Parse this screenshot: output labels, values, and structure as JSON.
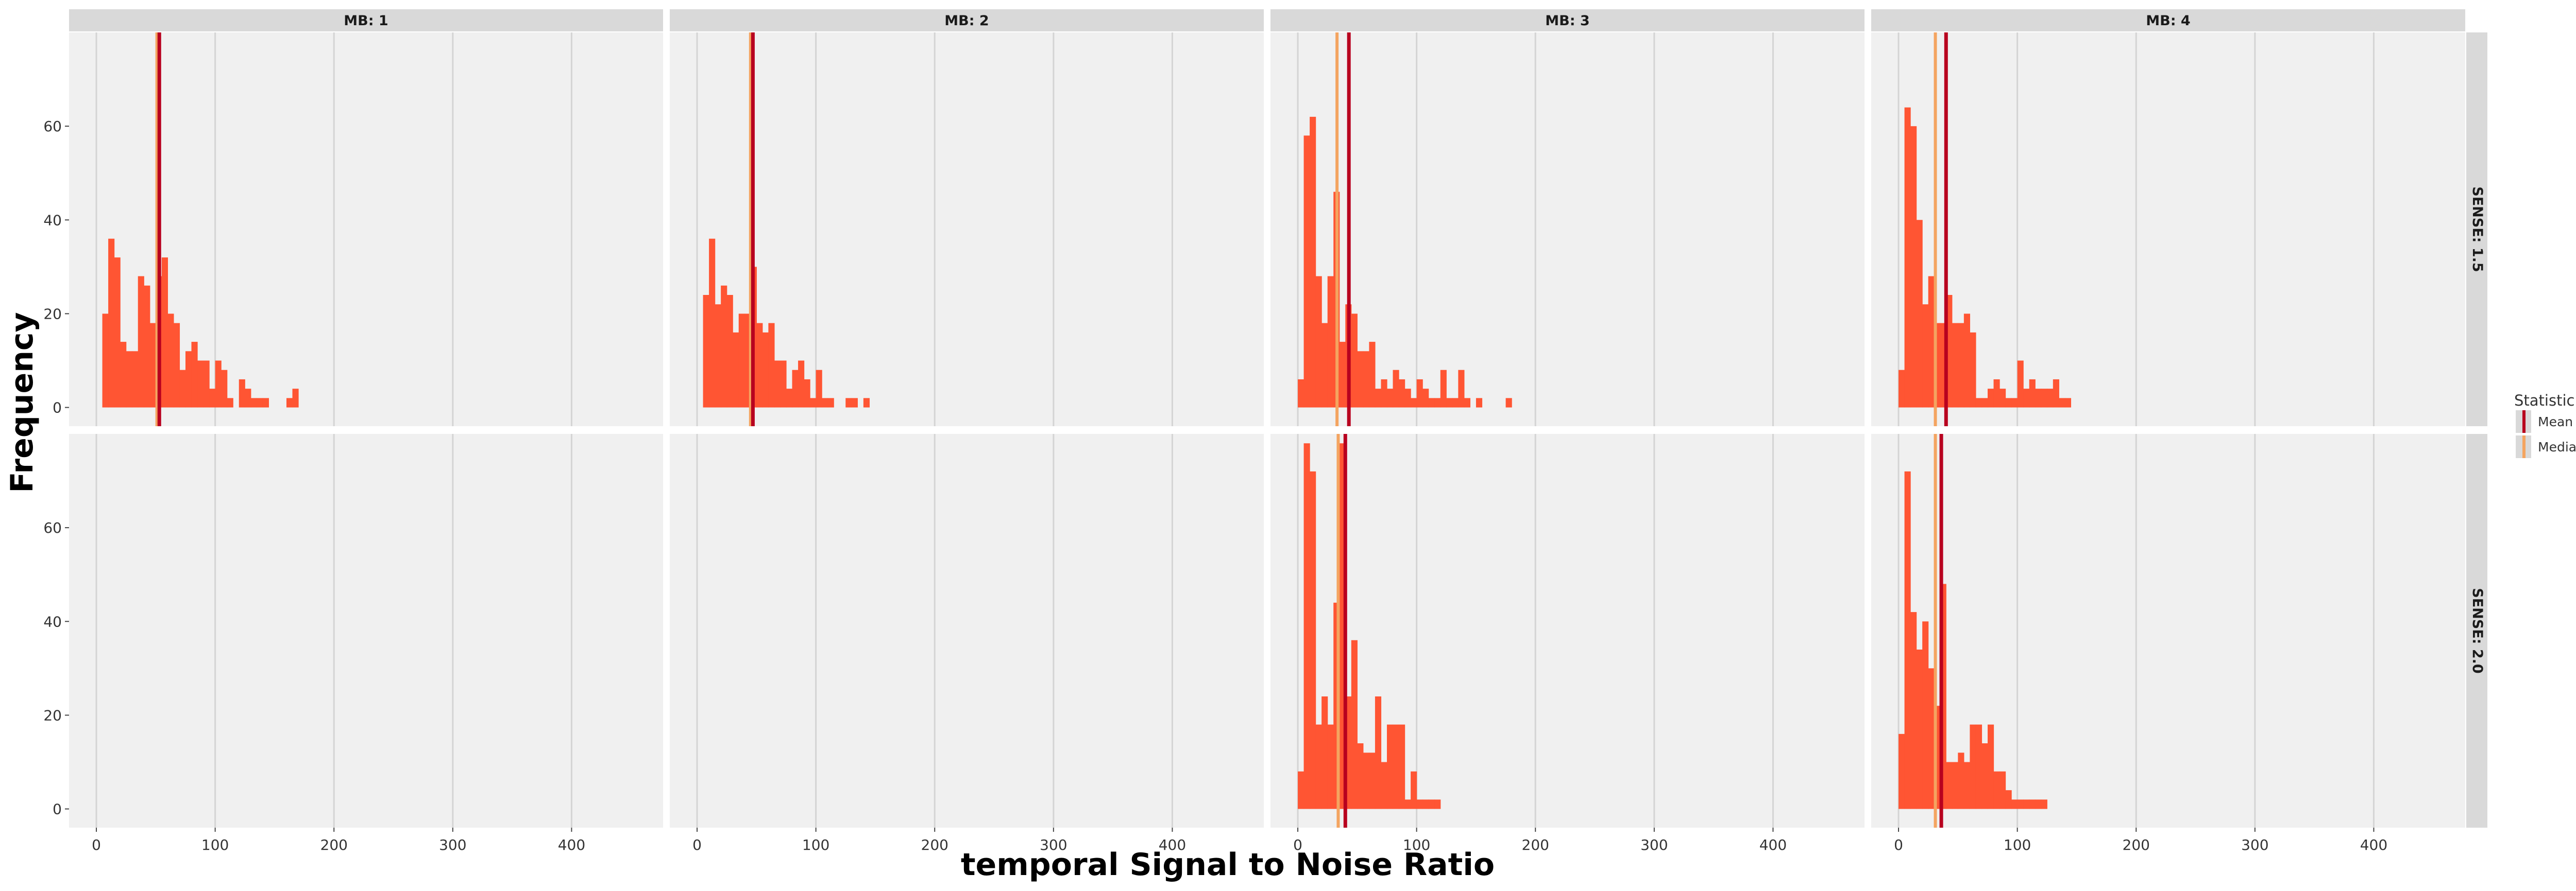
{
  "chart_data": {
    "type": "histogram",
    "layout": "facet grid",
    "xlabel": "temporal Signal to Noise Ratio",
    "ylabel": "Frequency",
    "xlim": [
      -23,
      477
    ],
    "ylim": [
      -4,
      80
    ],
    "x_ticks": [
      0,
      100,
      200,
      300,
      400
    ],
    "y_ticks": [
      0,
      20,
      40,
      60
    ],
    "grid": true,
    "bin_width": 5,
    "col_facets": [
      "MB: 1",
      "MB: 2",
      "MB: 3",
      "MB: 4"
    ],
    "row_facets": [
      "SENSE: 1.5",
      "SENSE: 2.0"
    ],
    "bar_color": "#ff5533",
    "panel_background": "#f0f0f0",
    "strip_background": "#d9d9d9",
    "legend": {
      "title": "Statistic",
      "position": "right",
      "items": [
        {
          "label": "Mean",
          "color": "#b8001f"
        },
        {
          "label": "Median",
          "color": "#f4a460"
        }
      ]
    },
    "panels": [
      {
        "row": 0,
        "col": 0,
        "mean": 53,
        "median": 51,
        "bins": [
          [
            5,
            20
          ],
          [
            10,
            36
          ],
          [
            15,
            32
          ],
          [
            20,
            14
          ],
          [
            25,
            12
          ],
          [
            30,
            12
          ],
          [
            35,
            28
          ],
          [
            40,
            26
          ],
          [
            45,
            18
          ],
          [
            50,
            28
          ],
          [
            55,
            32
          ],
          [
            60,
            20
          ],
          [
            65,
            18
          ],
          [
            70,
            8
          ],
          [
            75,
            12
          ],
          [
            80,
            14
          ],
          [
            85,
            10
          ],
          [
            90,
            10
          ],
          [
            95,
            4
          ],
          [
            100,
            10
          ],
          [
            105,
            8
          ],
          [
            110,
            2
          ],
          [
            120,
            6
          ],
          [
            125,
            4
          ],
          [
            130,
            2
          ],
          [
            135,
            2
          ],
          [
            140,
            2
          ],
          [
            160,
            2
          ],
          [
            165,
            4
          ]
        ]
      },
      {
        "row": 0,
        "col": 1,
        "mean": 47,
        "median": 45,
        "bins": [
          [
            5,
            24
          ],
          [
            10,
            36
          ],
          [
            15,
            22
          ],
          [
            20,
            26
          ],
          [
            25,
            24
          ],
          [
            30,
            16
          ],
          [
            35,
            20
          ],
          [
            40,
            20
          ],
          [
            45,
            30
          ],
          [
            50,
            18
          ],
          [
            55,
            16
          ],
          [
            60,
            18
          ],
          [
            65,
            10
          ],
          [
            70,
            10
          ],
          [
            75,
            4
          ],
          [
            80,
            8
          ],
          [
            85,
            10
          ],
          [
            90,
            6
          ],
          [
            95,
            2
          ],
          [
            100,
            8
          ],
          [
            105,
            2
          ],
          [
            110,
            2
          ],
          [
            125,
            2
          ],
          [
            130,
            2
          ],
          [
            140,
            2
          ]
        ]
      },
      {
        "row": 0,
        "col": 2,
        "mean": 43,
        "median": 33,
        "bins": [
          [
            0,
            6
          ],
          [
            5,
            58
          ],
          [
            10,
            62
          ],
          [
            15,
            28
          ],
          [
            20,
            18
          ],
          [
            25,
            28
          ],
          [
            30,
            46
          ],
          [
            35,
            14
          ],
          [
            40,
            22
          ],
          [
            45,
            20
          ],
          [
            50,
            12
          ],
          [
            55,
            12
          ],
          [
            60,
            14
          ],
          [
            65,
            4
          ],
          [
            70,
            6
          ],
          [
            75,
            4
          ],
          [
            80,
            8
          ],
          [
            85,
            6
          ],
          [
            90,
            4
          ],
          [
            95,
            2
          ],
          [
            100,
            6
          ],
          [
            105,
            4
          ],
          [
            110,
            2
          ],
          [
            115,
            2
          ],
          [
            120,
            8
          ],
          [
            125,
            2
          ],
          [
            130,
            2
          ],
          [
            135,
            8
          ],
          [
            140,
            2
          ],
          [
            150,
            2
          ],
          [
            175,
            2
          ]
        ]
      },
      {
        "row": 0,
        "col": 3,
        "mean": 40,
        "median": 31,
        "bins": [
          [
            0,
            8
          ],
          [
            5,
            64
          ],
          [
            10,
            60
          ],
          [
            15,
            40
          ],
          [
            20,
            22
          ],
          [
            25,
            28
          ],
          [
            30,
            18
          ],
          [
            35,
            18
          ],
          [
            40,
            24
          ],
          [
            45,
            18
          ],
          [
            50,
            18
          ],
          [
            55,
            20
          ],
          [
            60,
            16
          ],
          [
            65,
            2
          ],
          [
            70,
            2
          ],
          [
            75,
            4
          ],
          [
            80,
            6
          ],
          [
            85,
            4
          ],
          [
            90,
            2
          ],
          [
            95,
            2
          ],
          [
            100,
            10
          ],
          [
            105,
            4
          ],
          [
            110,
            6
          ],
          [
            115,
            4
          ],
          [
            120,
            4
          ],
          [
            125,
            4
          ],
          [
            130,
            6
          ],
          [
            135,
            2
          ],
          [
            140,
            2
          ]
        ]
      },
      {
        "row": 1,
        "col": 2,
        "mean": 40,
        "median": 34,
        "bins": [
          [
            0,
            8
          ],
          [
            5,
            78
          ],
          [
            10,
            72
          ],
          [
            15,
            18
          ],
          [
            20,
            24
          ],
          [
            25,
            18
          ],
          [
            30,
            44
          ],
          [
            35,
            78
          ],
          [
            40,
            24
          ],
          [
            45,
            36
          ],
          [
            50,
            14
          ],
          [
            55,
            12
          ],
          [
            60,
            12
          ],
          [
            65,
            24
          ],
          [
            70,
            10
          ],
          [
            75,
            18
          ],
          [
            80,
            18
          ],
          [
            85,
            18
          ],
          [
            90,
            2
          ],
          [
            95,
            8
          ],
          [
            100,
            2
          ],
          [
            105,
            2
          ],
          [
            110,
            2
          ],
          [
            115,
            2
          ]
        ]
      },
      {
        "row": 1,
        "col": 3,
        "mean": 36,
        "median": 31,
        "bins": [
          [
            0,
            16
          ],
          [
            5,
            72
          ],
          [
            10,
            42
          ],
          [
            15,
            34
          ],
          [
            20,
            40
          ],
          [
            25,
            30
          ],
          [
            30,
            22
          ],
          [
            35,
            48
          ],
          [
            40,
            10
          ],
          [
            45,
            10
          ],
          [
            50,
            12
          ],
          [
            55,
            10
          ],
          [
            60,
            18
          ],
          [
            65,
            18
          ],
          [
            70,
            14
          ],
          [
            75,
            18
          ],
          [
            80,
            8
          ],
          [
            85,
            8
          ],
          [
            90,
            4
          ],
          [
            95,
            2
          ],
          [
            100,
            2
          ],
          [
            105,
            2
          ],
          [
            110,
            2
          ],
          [
            115,
            2
          ],
          [
            120,
            2
          ]
        ]
      },
      {
        "row": 1,
        "col": 0,
        "bins": []
      },
      {
        "row": 1,
        "col": 1,
        "bins": []
      }
    ]
  }
}
